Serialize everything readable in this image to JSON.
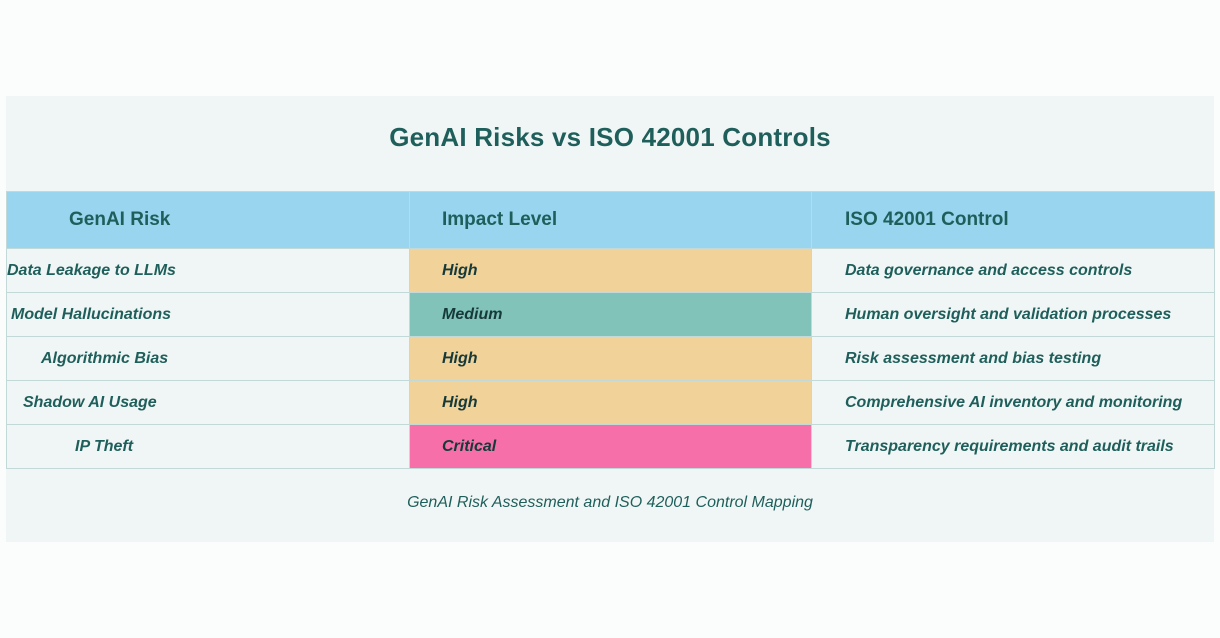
{
  "title": "GenAI Risks vs ISO 42001 Controls",
  "headers": {
    "risk": "GenAI Risk",
    "impact": "Impact Level",
    "control": "ISO 42001 Control"
  },
  "rows": [
    {
      "risk": "Data Leakage to LLMs",
      "impact": "High",
      "control": "Data governance and access controls"
    },
    {
      "risk": "Model Hallucinations",
      "impact": "Medium",
      "control": "Human oversight and validation processes"
    },
    {
      "risk": "Algorithmic Bias",
      "impact": "High",
      "control": "Risk assessment and bias testing"
    },
    {
      "risk": "Shadow AI Usage",
      "impact": "High",
      "control": "Comprehensive AI inventory and monitoring"
    },
    {
      "risk": "IP Theft",
      "impact": "Critical",
      "control": "Transparency requirements and audit trails"
    }
  ],
  "impact_colors": {
    "High": "#f1d298",
    "Medium": "#81c3b9",
    "Critical": "#f66fa8"
  },
  "caption": "GenAI Risk Assessment and ISO 42001 Control Mapping"
}
